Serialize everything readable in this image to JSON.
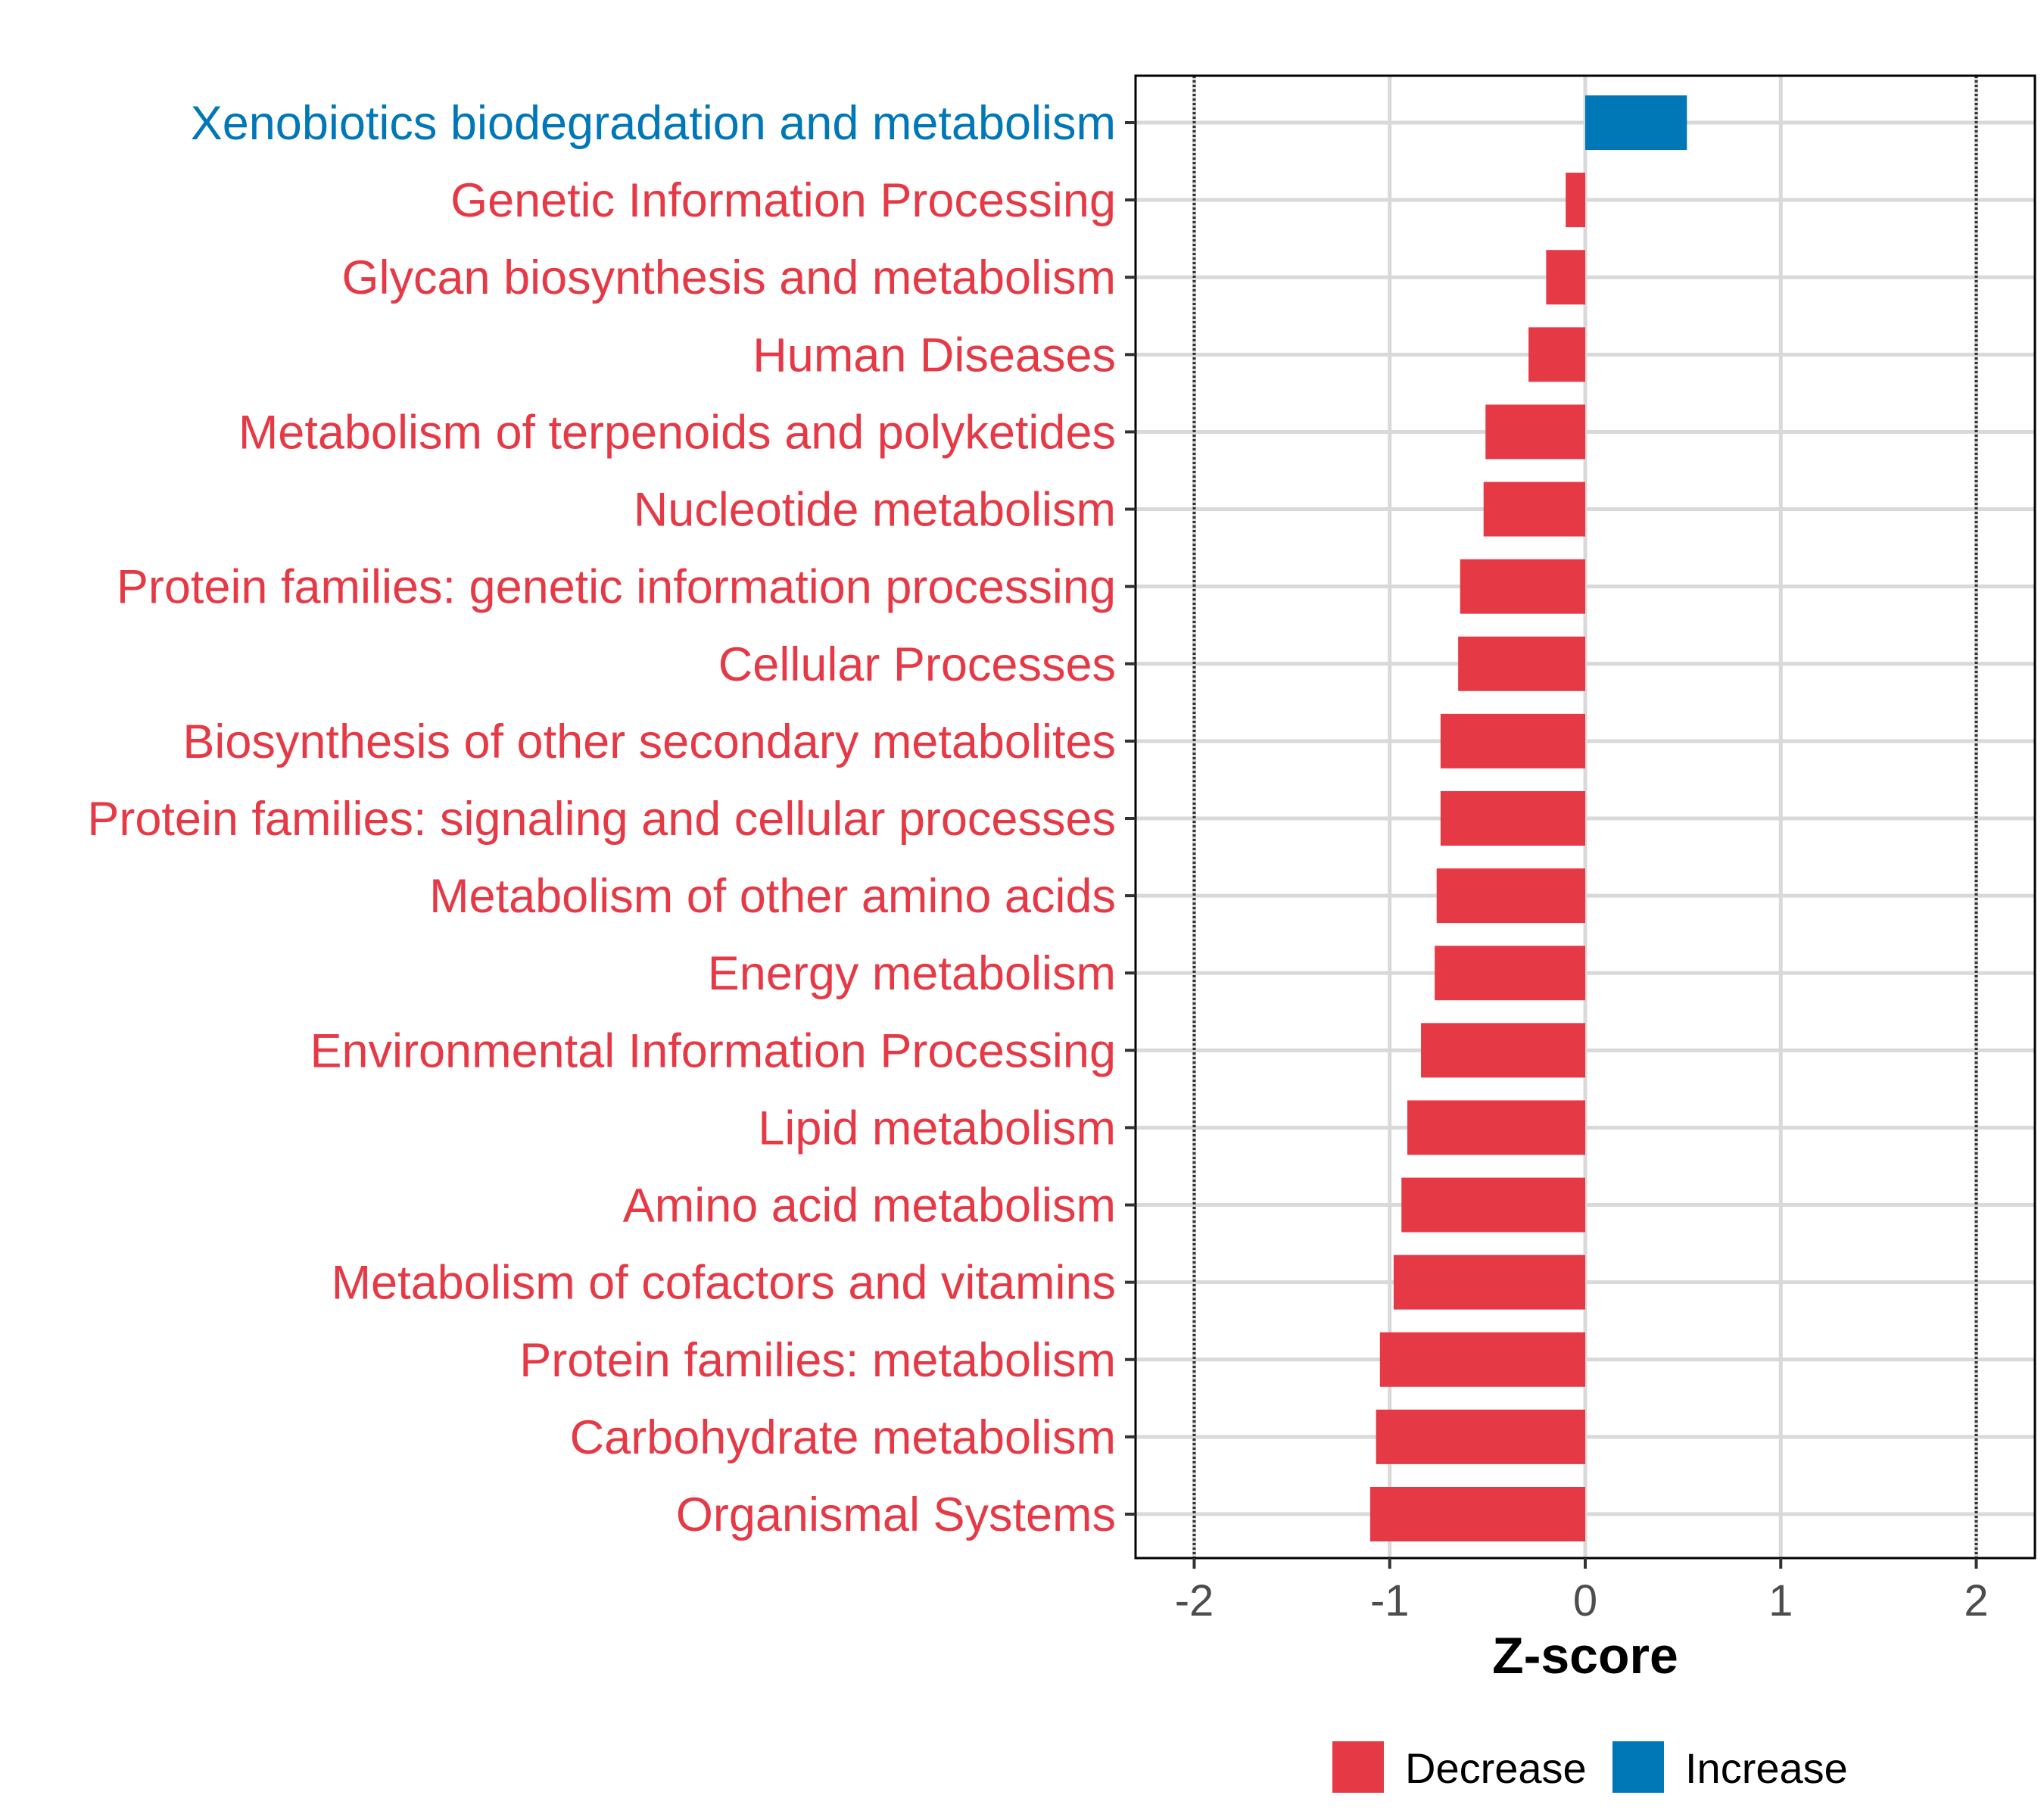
{
  "chart_data": {
    "type": "bar",
    "orientation": "horizontal",
    "categories": [
      "Xenobiotics biodegradation and metabolism",
      "Genetic Information Processing",
      "Glycan biosynthesis and metabolism",
      "Human Diseases",
      "Metabolism of terpenoids and polyketides",
      "Nucleotide metabolism",
      "Protein families: genetic information processing",
      "Cellular Processes",
      "Biosynthesis of other secondary metabolites",
      "Protein families: signaling and cellular processes",
      "Metabolism of other amino acids",
      "Energy metabolism",
      "Environmental Information Processing",
      "Lipid metabolism",
      "Amino acid metabolism",
      "Metabolism of cofactors and vitamins",
      "Protein families: metabolism",
      "Carbohydrate metabolism",
      "Organismal Systems"
    ],
    "values": [
      0.52,
      -0.1,
      -0.2,
      -0.29,
      -0.51,
      -0.52,
      -0.64,
      -0.65,
      -0.74,
      -0.74,
      -0.76,
      -0.77,
      -0.84,
      -0.91,
      -0.94,
      -0.98,
      -1.05,
      -1.07,
      -1.1
    ],
    "groups": [
      "Increase",
      "Decrease",
      "Decrease",
      "Decrease",
      "Decrease",
      "Decrease",
      "Decrease",
      "Decrease",
      "Decrease",
      "Decrease",
      "Decrease",
      "Decrease",
      "Decrease",
      "Decrease",
      "Decrease",
      "Decrease",
      "Decrease",
      "Decrease",
      "Decrease"
    ],
    "xlabel": "Z-score",
    "ylabel": "",
    "xlim": [
      -2.3,
      2.3
    ],
    "xticks": [
      -2,
      -1,
      0,
      1,
      2
    ],
    "xtick_labels": [
      "-2",
      "-1",
      "0",
      "1",
      "2"
    ],
    "reference_lines": [
      -2,
      2
    ],
    "grid": true,
    "legend": {
      "position": "bottom",
      "entries": [
        {
          "label": "Decrease",
          "color": "#e63946"
        },
        {
          "label": "Increase",
          "color": "#0077b6"
        }
      ]
    },
    "colors": {
      "Decrease": "#e63946",
      "Increase": "#0077b6"
    }
  }
}
